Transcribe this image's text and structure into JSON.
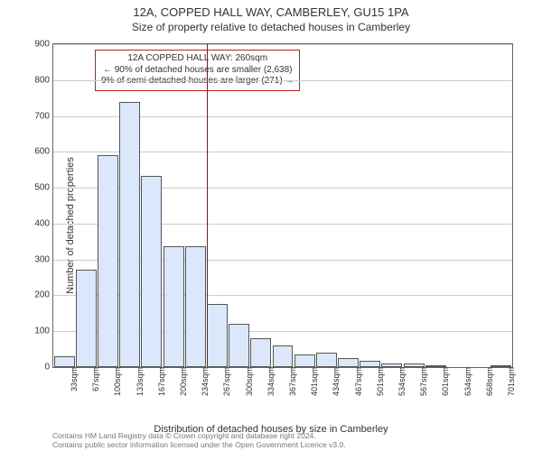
{
  "title": "12A, COPPED HALL WAY, CAMBERLEY, GU15 1PA",
  "subtitle": "Size of property relative to detached houses in Camberley",
  "ylabel": "Number of detached properties",
  "xlabel": "Distribution of detached houses by size in Camberley",
  "footer_line1": "Contains HM Land Registry data © Crown copyright and database right 2024.",
  "footer_line2": "Contains public sector information licensed under the Open Government Licence v3.0.",
  "chart": {
    "type": "histogram",
    "ylim": [
      0,
      900
    ],
    "ytick_step": 100,
    "xticks": [
      "33sqm",
      "67sqm",
      "100sqm",
      "133sqm",
      "167sqm",
      "200sqm",
      "234sqm",
      "267sqm",
      "300sqm",
      "334sqm",
      "367sqm",
      "401sqm",
      "434sqm",
      "467sqm",
      "501sqm",
      "534sqm",
      "567sqm",
      "601sqm",
      "634sqm",
      "668sqm",
      "701sqm"
    ],
    "values": [
      30,
      272,
      590,
      740,
      532,
      338,
      336,
      175,
      120,
      80,
      60,
      35,
      40,
      26,
      18,
      10,
      10,
      6,
      0,
      0,
      6
    ],
    "bar_fill": "#dbe7fb",
    "bar_border": "#555555",
    "bar_width": 0.95,
    "grid_color": "#cccccc",
    "background_color": "#ffffff",
    "marker": {
      "index": 7,
      "color": "#bb0000"
    },
    "title_fontsize": 13,
    "subtitle_fontsize": 12,
    "label_fontsize": 11,
    "tick_fontsize": 10
  },
  "annotation": {
    "line1": "12A COPPED HALL WAY: 260sqm",
    "line2": "← 90% of detached houses are smaller (2,638)",
    "line3": "9% of semi-detached houses are larger (271) →",
    "border_color": "#bb0000"
  }
}
